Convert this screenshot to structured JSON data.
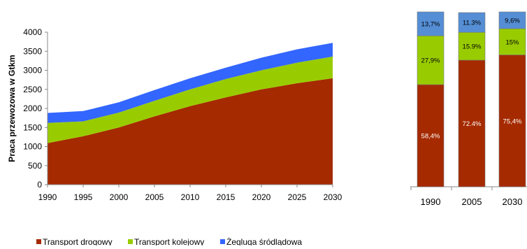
{
  "chart_data": [
    {
      "type": "area",
      "stacked": true,
      "ylabel": "Praca przewozowa w Gtkm",
      "xlabel": "",
      "x": [
        1990,
        1995,
        2000,
        2005,
        2010,
        2015,
        2020,
        2025,
        2030
      ],
      "ylim": [
        0,
        4000
      ],
      "yticks": [
        0,
        500,
        1000,
        1500,
        2000,
        2500,
        3000,
        3500,
        4000
      ],
      "series": [
        {
          "name": "Transport drogowy",
          "color": "#a52a00",
          "values": [
            1090,
            1270,
            1500,
            1790,
            2060,
            2290,
            2500,
            2660,
            2790
          ]
        },
        {
          "name": "Transport kolejowy",
          "color": "#99cc00",
          "values": [
            530,
            390,
            390,
            410,
            440,
            480,
            500,
            540,
            570
          ]
        },
        {
          "name": "Żegluga śródlądowa",
          "color": "#3366ff",
          "values": [
            260,
            270,
            270,
            280,
            290,
            300,
            330,
            350,
            360
          ]
        }
      ],
      "grid": false,
      "legend": "bottom-left"
    },
    {
      "type": "bar",
      "stacked": true,
      "percent": true,
      "categories": [
        "1990",
        "2005",
        "2030"
      ],
      "series": [
        {
          "name": "Transport drogowy",
          "color": "#a52a00",
          "values": [
            58.4,
            72.4,
            75.4
          ],
          "labels": [
            "58,4%",
            "72.4%",
            "75,4%"
          ]
        },
        {
          "name": "Transport kolejowy",
          "color": "#99cc00",
          "values": [
            27.9,
            15.9,
            15.0
          ],
          "labels": [
            "27,9%",
            "15.9%",
            "15%"
          ]
        },
        {
          "name": "Żegluga śródlądowa",
          "color": "#558ed5",
          "values": [
            13.7,
            11.3,
            9.6
          ],
          "labels": [
            "13,7%",
            "11.3%",
            "9,6%"
          ]
        }
      ]
    }
  ],
  "legend": {
    "items": [
      {
        "label": "Transport drogowy",
        "color": "#a52a00"
      },
      {
        "label": "Transport kolejowy",
        "color": "#99cc00"
      },
      {
        "label": "Żegluga śródlądowa",
        "color": "#3366ff"
      }
    ]
  }
}
